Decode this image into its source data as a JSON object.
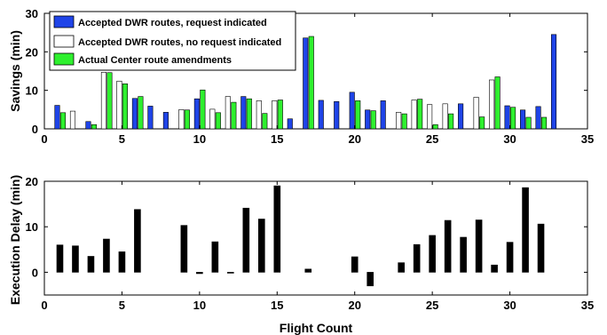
{
  "chart_data": [
    {
      "type": "bar",
      "ylabel": "Savings (min)",
      "xlim": [
        0,
        35
      ],
      "ylim": [
        0,
        30
      ],
      "xticks": [
        "0",
        "5",
        "10",
        "15",
        "20",
        "25",
        "30",
        "35"
      ],
      "yticks": [
        "0",
        "10",
        "20",
        "30"
      ],
      "grid": false,
      "legend_position": "top-left",
      "series": [
        {
          "name": "Accepted DWR routes, request indicated",
          "color": "#1f44e8",
          "x": [
            1,
            3,
            6,
            7,
            8,
            10,
            13,
            16,
            17,
            18,
            19,
            20,
            21,
            22,
            27,
            30,
            31,
            32,
            33
          ],
          "values": [
            6.1,
            1.9,
            7.9,
            5.9,
            4.3,
            7.8,
            8.4,
            2.6,
            23.6,
            7.4,
            7.1,
            9.5,
            4.9,
            7.3,
            6.5,
            6.0,
            4.9,
            5.8,
            24.5
          ]
        },
        {
          "name": "Accepted DWR routes, no request indicated",
          "color": "#ffffff",
          "x": [
            2,
            4,
            5,
            9,
            11,
            12,
            14,
            15,
            23,
            24,
            25,
            26,
            28,
            29
          ],
          "values": [
            4.6,
            14.7,
            12.4,
            5.0,
            5.1,
            8.4,
            7.3,
            7.3,
            4.3,
            7.5,
            6.3,
            6.5,
            8.2,
            12.7
          ]
        },
        {
          "name": "Actual Center route amendments",
          "color": "#2ef02e",
          "x": [
            1,
            3,
            4,
            5,
            6,
            9,
            10,
            11,
            12,
            13,
            14,
            15,
            17,
            20,
            21,
            23,
            24,
            25,
            26,
            28,
            29,
            30,
            31,
            32
          ],
          "values": [
            4.2,
            1.1,
            14.6,
            11.7,
            8.4,
            4.9,
            10.1,
            4.2,
            6.9,
            7.8,
            4.0,
            7.5,
            24.0,
            7.3,
            4.7,
            3.9,
            7.7,
            1.1,
            3.9,
            3.1,
            13.5,
            5.6,
            3.0,
            3.0
          ]
        }
      ]
    },
    {
      "type": "bar",
      "xlabel": "Flight Count",
      "ylabel": "Execution Delay (min)",
      "xlim": [
        0,
        35
      ],
      "ylim": [
        -5,
        20
      ],
      "xticks": [
        "0",
        "5",
        "10",
        "15",
        "20",
        "25",
        "30",
        "35"
      ],
      "yticks": [
        "0",
        "10",
        "20"
      ],
      "grid": false,
      "series": [
        {
          "color": "#000000",
          "x": [
            1,
            2,
            3,
            4,
            5,
            6,
            9,
            10,
            11,
            12,
            13,
            14,
            15,
            17,
            20,
            21,
            23,
            24,
            25,
            26,
            27,
            28,
            29,
            30,
            31,
            32
          ],
          "values": [
            6.0,
            5.8,
            3.5,
            7.3,
            4.5,
            13.8,
            10.3,
            -0.3,
            6.7,
            -0.2,
            14.1,
            11.7,
            19.0,
            0.7,
            3.4,
            -3.0,
            2.1,
            6.1,
            8.1,
            11.4,
            7.7,
            11.5,
            1.6,
            6.6,
            18.6,
            10.6
          ]
        }
      ]
    }
  ]
}
